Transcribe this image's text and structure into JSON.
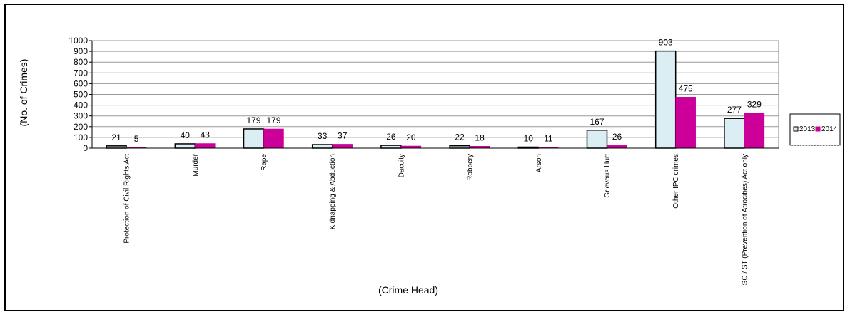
{
  "chart_data": {
    "type": "bar",
    "title": "",
    "xlabel": "(Crime Head)",
    "ylabel": "(No. of Crimes)",
    "ylim": [
      0,
      1000
    ],
    "yticks": [
      0,
      100,
      200,
      300,
      400,
      500,
      600,
      700,
      800,
      900,
      1000
    ],
    "categories": [
      "Protection of Civil Rights Act",
      "Murder",
      "Rape",
      "Kidnapping & Abduction",
      "Dacoity",
      "Robbery",
      "Arson",
      "Grievous Hurt",
      "Other IPC crimes",
      "SC / ST (Prevention of Atrocities) Act only"
    ],
    "series": [
      {
        "name": "2013",
        "values": [
          21,
          40,
          179,
          33,
          26,
          22,
          10,
          167,
          903,
          277
        ],
        "color": "#dbeef4"
      },
      {
        "name": "2014",
        "values": [
          5,
          43,
          179,
          37,
          20,
          18,
          11,
          26,
          475,
          329
        ],
        "color": "#cc0099"
      }
    ],
    "grid": true,
    "legend_position": "right"
  }
}
